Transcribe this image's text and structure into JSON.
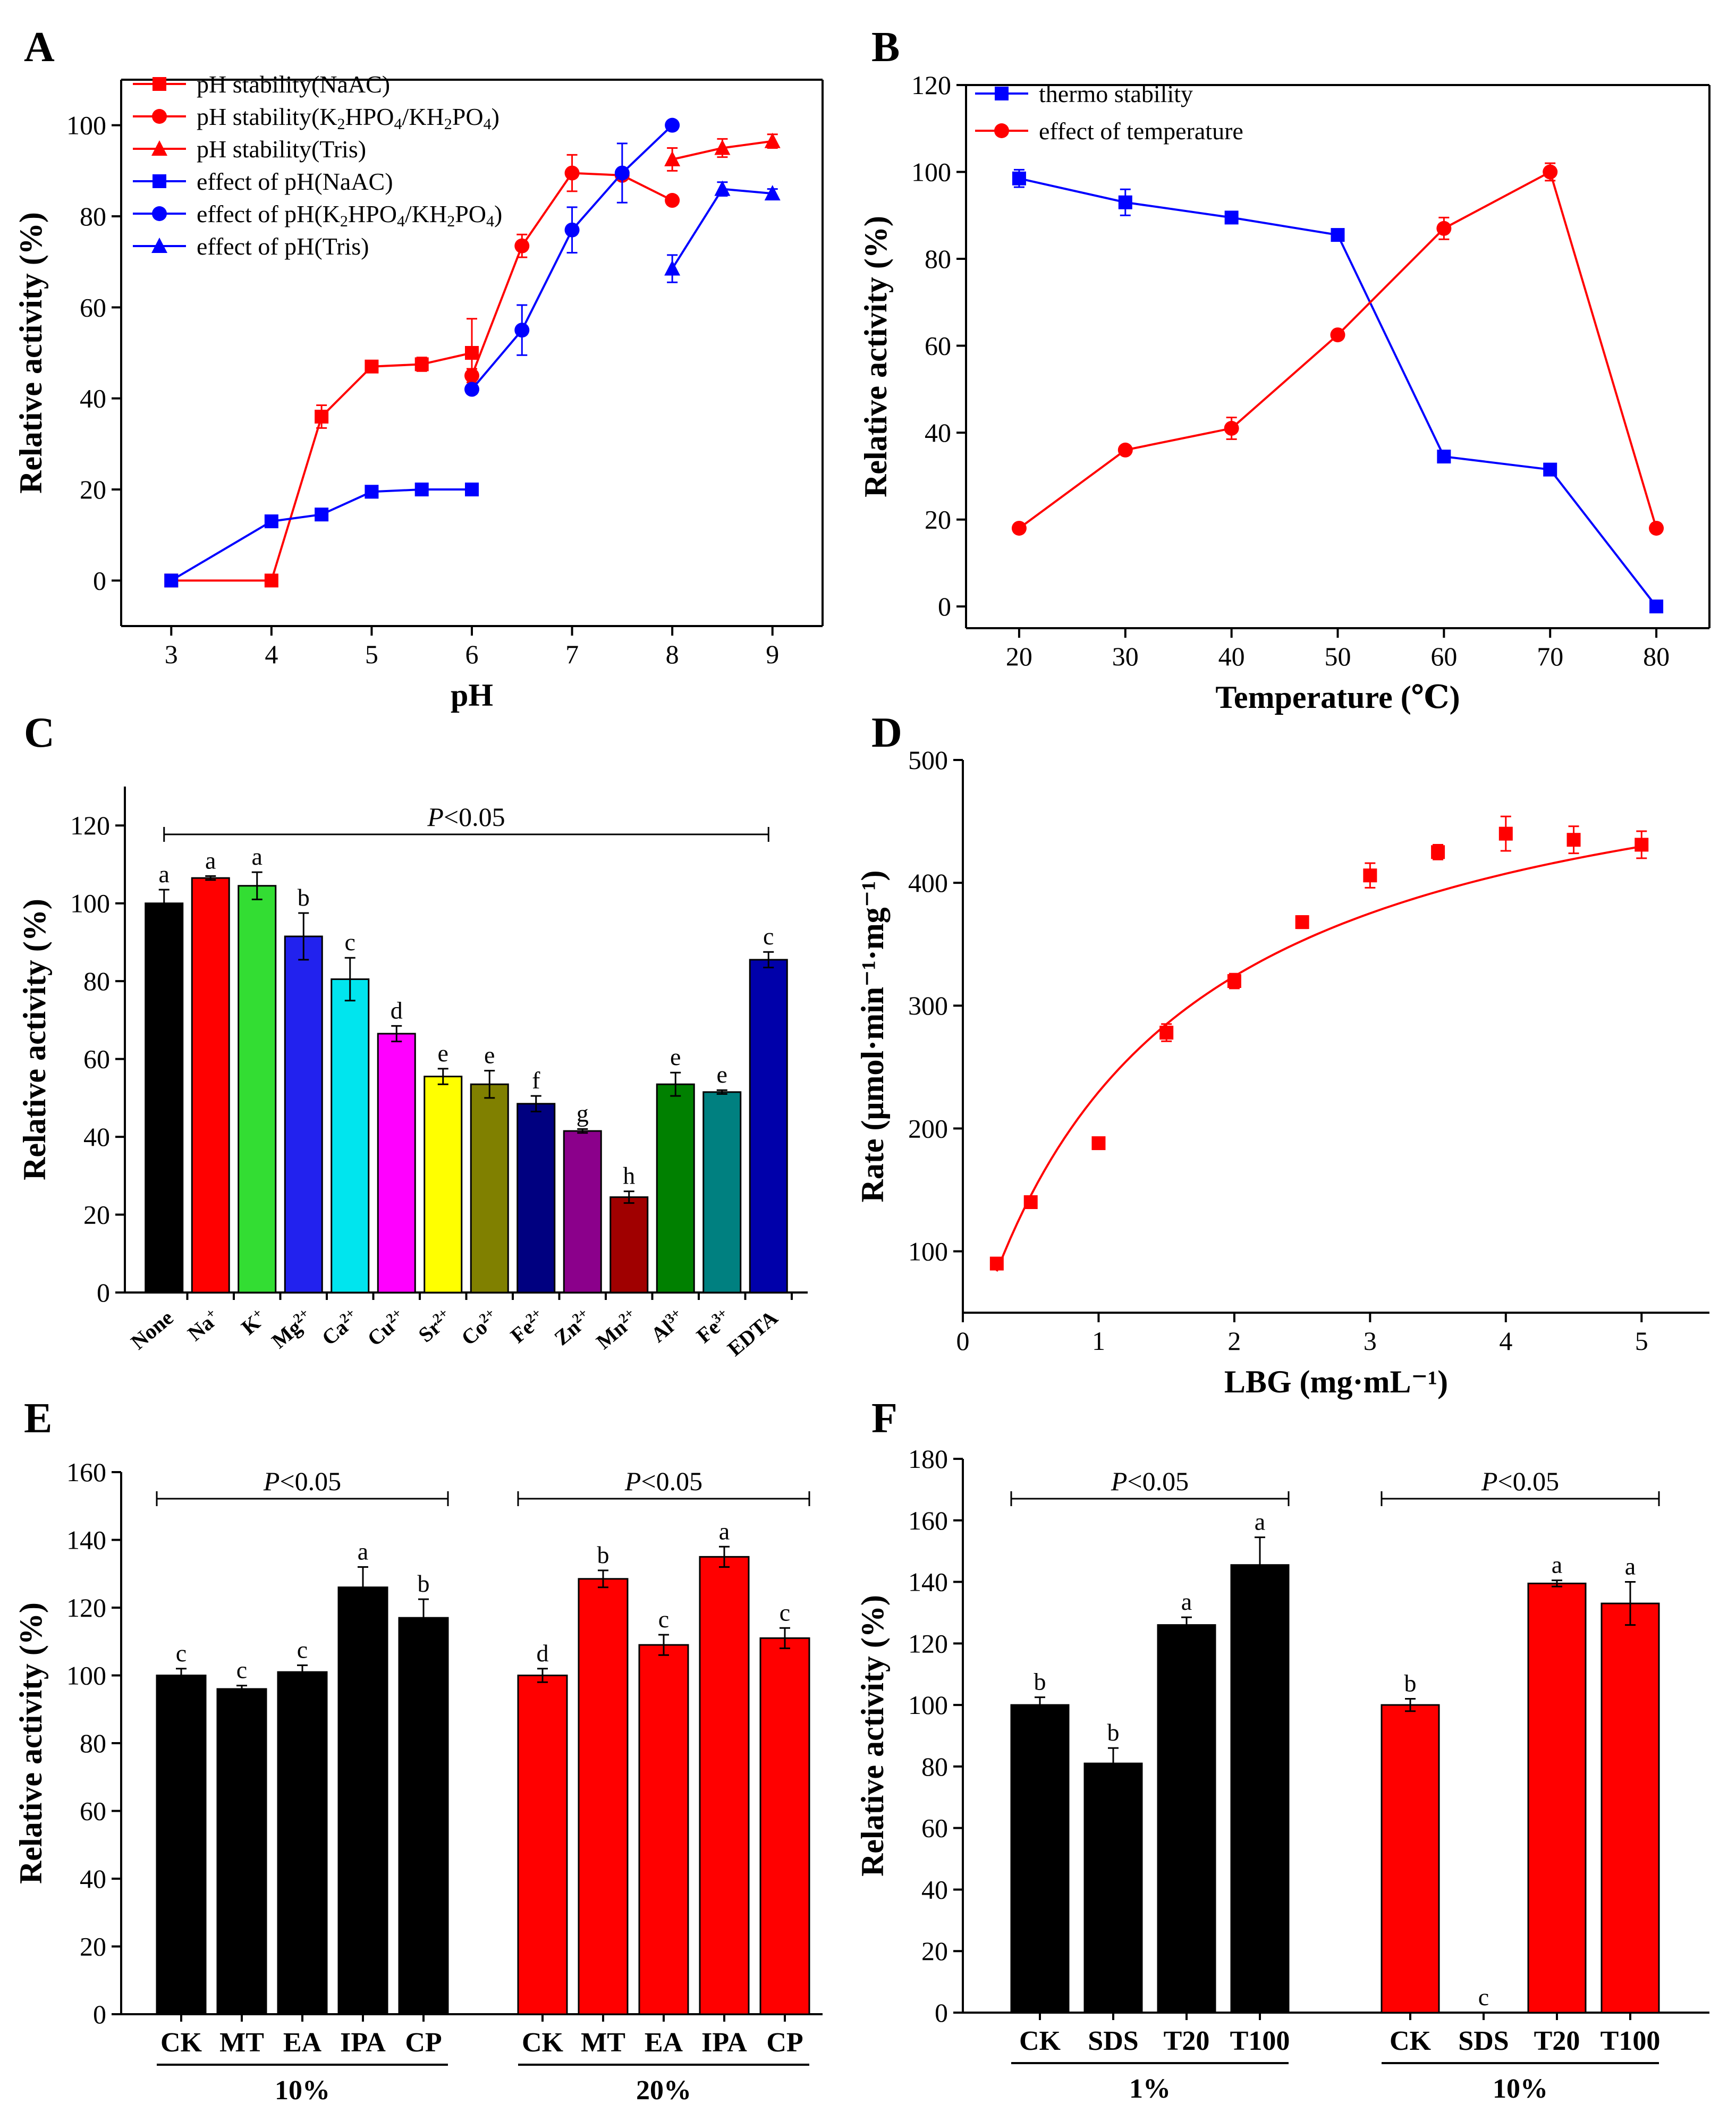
{
  "panels": {
    "A": "A",
    "B": "B",
    "C": "C",
    "D": "D",
    "E": "E",
    "F": "F"
  },
  "chart_data": [
    {
      "id": "A",
      "type": "line",
      "xlabel": "pH",
      "ylabel": "Relative activity (%)",
      "xlim": [
        2.5,
        9.5
      ],
      "ylim": [
        -10,
        110
      ],
      "xticks": [
        3,
        4,
        5,
        6,
        7,
        8,
        9
      ],
      "yticks": [
        0,
        20,
        40,
        60,
        80,
        100
      ],
      "series": [
        {
          "name": "pH stability(NaAC)",
          "legend": [
            "pH stability(NaAC)"
          ],
          "color": "#ff0000",
          "marker": "square",
          "x": [
            3,
            4,
            4.5,
            5,
            5.5,
            6
          ],
          "values": [
            0,
            0,
            36,
            47,
            47.5,
            50
          ],
          "err": [
            0,
            0,
            2.5,
            1,
            1.5,
            7.5
          ]
        },
        {
          "name": "pH stability(K2HPO4/KH2PO4)",
          "legend": [
            "pH stability(K",
            "2",
            "HPO",
            "4",
            "/KH",
            "2",
            "PO",
            "4",
            ")"
          ],
          "color": "#ff0000",
          "marker": "circle",
          "x": [
            6,
            6.5,
            7,
            7.5,
            8
          ],
          "values": [
            45,
            73.5,
            89.5,
            89,
            83.5
          ],
          "err": [
            1.5,
            2.5,
            4,
            1,
            1
          ]
        },
        {
          "name": "pH stability(Tris)",
          "legend": [
            "pH stability(Tris)"
          ],
          "color": "#ff0000",
          "marker": "triangle",
          "x": [
            8,
            8.5,
            9
          ],
          "values": [
            92.5,
            95,
            96.5
          ],
          "err": [
            2.5,
            2,
            1.5
          ]
        },
        {
          "name": "effect of pH(NaAC)",
          "legend": [
            "effect of pH(NaAC)"
          ],
          "color": "#0000ff",
          "marker": "square",
          "x": [
            3,
            4,
            4.5,
            5,
            5.5,
            6
          ],
          "values": [
            0,
            13,
            14.5,
            19.5,
            20,
            20
          ],
          "err": [
            0,
            0,
            0.5,
            1,
            0.5,
            0.5
          ]
        },
        {
          "name": "effect of pH(K2HPO4/KH2PO4)",
          "legend": [
            "effect of pH(K",
            "2",
            "HPO",
            "4",
            "/KH",
            "2",
            "PO",
            "4",
            ")"
          ],
          "color": "#0000ff",
          "marker": "circle",
          "x": [
            6,
            6.5,
            7,
            7.5,
            8
          ],
          "values": [
            42,
            55,
            77,
            89.5,
            100
          ],
          "err": [
            1,
            5.5,
            5,
            6.5,
            0
          ]
        },
        {
          "name": "effect of pH(Tris)",
          "legend": [
            "effect of pH(Tris)"
          ],
          "color": "#0000ff",
          "marker": "triangle",
          "x": [
            8,
            8.5,
            9
          ],
          "values": [
            68.5,
            86,
            85
          ],
          "err": [
            3,
            1.5,
            1
          ]
        }
      ]
    },
    {
      "id": "B",
      "type": "line",
      "xlabel": "Temperature (℃)",
      "ylabel": "Relative activity (%)",
      "xlim": [
        15,
        85
      ],
      "ylim": [
        -5,
        120
      ],
      "xticks": [
        20,
        30,
        40,
        50,
        60,
        70,
        80
      ],
      "yticks": [
        0,
        20,
        40,
        60,
        80,
        100,
        120
      ],
      "series": [
        {
          "name": "thermo stability",
          "legend": [
            "thermo stability"
          ],
          "color": "#0000ff",
          "marker": "square",
          "x": [
            20,
            30,
            40,
            50,
            60,
            70,
            80
          ],
          "values": [
            98.5,
            93,
            89.5,
            85.5,
            34.5,
            31.5,
            0
          ],
          "err": [
            2,
            3,
            1,
            0.5,
            0.5,
            0.5,
            0
          ]
        },
        {
          "name": "effect of temperature",
          "legend": [
            "effect of temperature"
          ],
          "color": "#ff0000",
          "marker": "circle",
          "x": [
            20,
            30,
            40,
            50,
            60,
            70,
            80
          ],
          "values": [
            18,
            36,
            41,
            62.5,
            87,
            100,
            18
          ],
          "err": [
            0.5,
            0.5,
            2.5,
            0.5,
            2.5,
            2,
            0.5
          ]
        }
      ]
    },
    {
      "id": "C",
      "type": "bar",
      "ylabel": "Relative activity (%)",
      "ylim": [
        0,
        130
      ],
      "yticks": [
        0,
        20,
        40,
        60,
        80,
        100,
        120
      ],
      "significance": [
        {
          "label": "P<0.05",
          "italic": "P",
          "rest": "<0.05"
        }
      ],
      "categories": [
        {
          "base": "None",
          "sup": ""
        },
        {
          "base": "Na",
          "sup": "+"
        },
        {
          "base": "K",
          "sup": "+"
        },
        {
          "base": "Mg",
          "sup": "2+"
        },
        {
          "base": "Ca",
          "sup": "2+"
        },
        {
          "base": "Cu",
          "sup": "2+"
        },
        {
          "base": "Sr",
          "sup": "2+"
        },
        {
          "base": "Co",
          "sup": "2+"
        },
        {
          "base": "Fe",
          "sup": "2+"
        },
        {
          "base": "Zn",
          "sup": "2+"
        },
        {
          "base": "Mn",
          "sup": "2+"
        },
        {
          "base": "Al",
          "sup": "3+"
        },
        {
          "base": "Fe",
          "sup": "3+"
        },
        {
          "base": "EDTA",
          "sup": ""
        }
      ],
      "values": [
        100,
        106.5,
        104.5,
        91.5,
        80.5,
        66.5,
        55.5,
        53.5,
        48.5,
        41.5,
        24.5,
        53.5,
        51.5,
        85.5
      ],
      "err": [
        3.5,
        0.5,
        3.5,
        6,
        5.5,
        2,
        2,
        3.5,
        2,
        0.5,
        1.5,
        3,
        0.5,
        2
      ],
      "letters": [
        "a",
        "a",
        "a",
        "b",
        "c",
        "d",
        "e",
        "e",
        "f",
        "g",
        "h",
        "e",
        "e",
        "c"
      ],
      "colors": [
        "#000000",
        "#ff0000",
        "#33dd33",
        "#2222ee",
        "#00e5ee",
        "#ff00ff",
        "#ffff00",
        "#808000",
        "#000080",
        "#8b008b",
        "#a00000",
        "#008000",
        "#008080",
        "#0000aa"
      ]
    },
    {
      "id": "D",
      "type": "scatter",
      "xlabel": "LBG (mg·mL⁻¹)",
      "ylabel": "Rate (μmol·min⁻¹·mg⁻¹)",
      "xlim": [
        0,
        5.5
      ],
      "ylim": [
        50,
        500
      ],
      "xticks": [
        0,
        1,
        2,
        3,
        4,
        5
      ],
      "yticks": [
        100,
        200,
        300,
        400,
        500
      ],
      "x": [
        0.25,
        0.5,
        1,
        1.5,
        2,
        2.5,
        3,
        3.5,
        4,
        4.5,
        5
      ],
      "values": [
        90,
        140,
        188,
        278,
        320,
        368,
        406,
        425,
        440,
        435,
        431
      ],
      "err": [
        0,
        0,
        0,
        7,
        6,
        5,
        10,
        6,
        14,
        11,
        11
      ],
      "fit": {
        "model": "michaelis-menten",
        "vmax": 549,
        "km": 1.39
      },
      "color": "#ff0000"
    },
    {
      "id": "E",
      "type": "bar",
      "ylabel": "Relative activity (%)",
      "ylim": [
        0,
        160
      ],
      "yticks": [
        0,
        20,
        40,
        60,
        80,
        100,
        120,
        140,
        160
      ],
      "significance": [
        {
          "label": "P<0.05",
          "italic": "P",
          "rest": "<0.05"
        },
        {
          "label": "P<0.05",
          "italic": "P",
          "rest": "<0.05"
        }
      ],
      "groups": [
        {
          "name": "10%",
          "color": "#000000",
          "categories": [
            "CK",
            "MT",
            "EA",
            "IPA",
            "CP"
          ],
          "values": [
            100,
            96,
            101,
            126,
            117
          ],
          "err": [
            2,
            1,
            2,
            6,
            5.5
          ],
          "letters": [
            "c",
            "c",
            "c",
            "a",
            "b"
          ]
        },
        {
          "name": "20%",
          "color": "#ff0000",
          "categories": [
            "CK",
            "MT",
            "EA",
            "IPA",
            "CP"
          ],
          "values": [
            100,
            128.5,
            109,
            135,
            111
          ],
          "err": [
            2,
            2.5,
            3,
            3,
            3
          ],
          "letters": [
            "d",
            "b",
            "c",
            "a",
            "c"
          ]
        }
      ]
    },
    {
      "id": "F",
      "type": "bar",
      "ylabel": "Relative activity (%)",
      "ylim": [
        0,
        180
      ],
      "yticks": [
        0,
        20,
        40,
        60,
        80,
        100,
        120,
        140,
        160,
        180
      ],
      "significance": [
        {
          "label": "P<0.05",
          "italic": "P",
          "rest": "<0.05"
        },
        {
          "label": "P<0.05",
          "italic": "P",
          "rest": "<0.05"
        }
      ],
      "groups": [
        {
          "name": "1%",
          "color": "#000000",
          "categories": [
            "CK",
            "SDS",
            "T20",
            "T100"
          ],
          "values": [
            100,
            81,
            126,
            145.5
          ],
          "err": [
            2.5,
            5,
            2.5,
            9
          ],
          "letters": [
            "b",
            "b",
            "a",
            "a"
          ]
        },
        {
          "name": "10%",
          "color": "#ff0000",
          "categories": [
            "CK",
            "SDS",
            "T20",
            "T100"
          ],
          "values": [
            100,
            0,
            139.5,
            133
          ],
          "err": [
            2,
            0,
            1,
            7
          ],
          "letters": [
            "b",
            "c",
            "a",
            "a"
          ]
        }
      ]
    }
  ]
}
